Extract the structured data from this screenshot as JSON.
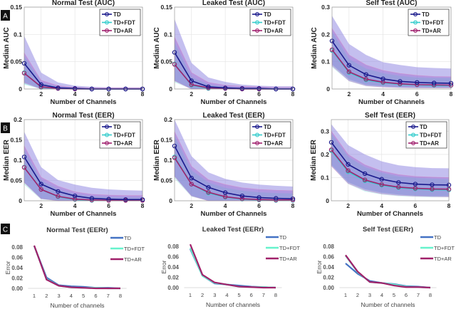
{
  "figure": {
    "panel_labels": [
      "A",
      "B",
      "C"
    ]
  },
  "colors": {
    "TD": "#1a1a8c",
    "TD+FDT": "#33cccc",
    "TD+AR": "#a0206e",
    "TD_band": "#8a80e0",
    "TD+AR_band": "#9050c8",
    "TD+FDT_band": "#66dddd",
    "C_TD": "#4472c4",
    "C_TD+FDT": "#66f2cc",
    "C_TD+AR": "#a0206a"
  },
  "chart_data": [
    {
      "type": "line",
      "row": "A",
      "title": "Normal Test (AUC)",
      "xlabel": "Number of Channels",
      "ylabel": "Median AUC",
      "x": [
        1,
        2,
        3,
        4,
        5,
        6,
        7,
        8
      ],
      "xlim": [
        1,
        8
      ],
      "xticks": [
        "2",
        "4",
        "6",
        "8"
      ],
      "ylim": [
        0,
        0.15
      ],
      "yticks": [
        "0",
        "0.05",
        "0.1",
        "0.15"
      ],
      "grid": true,
      "legend": "top-right",
      "markers": true,
      "series": [
        {
          "name": "TD",
          "values": [
            0.047,
            0.008,
            0.002,
            0.001,
            0,
            0,
            0,
            0
          ],
          "band_upper": [
            0.097,
            0.03,
            0.012,
            0.006,
            0.004,
            0.003,
            0.003,
            0.003
          ],
          "band_lower": [
            0.01,
            0,
            0,
            0,
            0,
            0,
            0,
            0
          ]
        },
        {
          "name": "TD+FDT",
          "values": [
            0.03,
            0.003,
            0.001,
            0,
            0,
            0,
            0,
            0
          ],
          "band_upper": [
            0.06,
            0.012,
            0.004,
            0.002,
            0.001,
            0.001,
            0.001,
            0.001
          ],
          "band_lower": [
            0.008,
            0,
            0,
            0,
            0,
            0,
            0,
            0
          ]
        },
        {
          "name": "TD+AR",
          "values": [
            0.029,
            0.004,
            0.001,
            0,
            0,
            0,
            0,
            0
          ],
          "band_upper": [
            0.066,
            0.016,
            0.006,
            0.003,
            0.002,
            0.002,
            0.002,
            0.002
          ],
          "band_lower": [
            0.012,
            0,
            0,
            0,
            0,
            0,
            0,
            0
          ]
        }
      ]
    },
    {
      "type": "line",
      "row": "A",
      "title": "Leaked Test (AUC)",
      "xlabel": "Number of Channels",
      "ylabel": "Median AUC",
      "x": [
        1,
        2,
        3,
        4,
        5,
        6,
        7,
        8
      ],
      "xlim": [
        1,
        8
      ],
      "xticks": [
        "2",
        "4",
        "6",
        "8"
      ],
      "ylim": [
        0,
        0.15
      ],
      "yticks": [
        "0",
        "0.05",
        "0.1",
        "0.15"
      ],
      "grid": true,
      "legend": "top-right",
      "markers": true,
      "series": [
        {
          "name": "TD",
          "values": [
            0.067,
            0.015,
            0.004,
            0.002,
            0.001,
            0.001,
            0,
            0
          ],
          "band_upper": [
            0.128,
            0.048,
            0.021,
            0.013,
            0.008,
            0.006,
            0.005,
            0.005
          ],
          "band_lower": [
            0.015,
            0,
            0,
            0,
            0,
            0,
            0,
            0
          ]
        },
        {
          "name": "TD+FDT",
          "values": [
            0.046,
            0.007,
            0.001,
            0.001,
            0,
            0,
            0,
            0
          ],
          "band_upper": [
            0.085,
            0.022,
            0.008,
            0.004,
            0.002,
            0.002,
            0.002,
            0.002
          ],
          "band_lower": [
            0.012,
            0,
            0,
            0,
            0,
            0,
            0,
            0
          ]
        },
        {
          "name": "TD+AR",
          "values": [
            0.045,
            0.008,
            0.002,
            0.001,
            0,
            0,
            0,
            0
          ],
          "band_upper": [
            0.095,
            0.03,
            0.012,
            0.007,
            0.005,
            0.004,
            0.003,
            0.003
          ],
          "band_lower": [
            0.015,
            0,
            0,
            0,
            0,
            0,
            0,
            0
          ]
        }
      ]
    },
    {
      "type": "line",
      "row": "A",
      "title": "Self Test (AUC)",
      "xlabel": "Number of Channels",
      "ylabel": "Median AUC",
      "x": [
        1,
        2,
        3,
        4,
        5,
        6,
        7,
        8
      ],
      "xlim": [
        1,
        8
      ],
      "xticks": [
        "2",
        "4",
        "6",
        "8"
      ],
      "ylim": [
        0,
        0.3
      ],
      "yticks": [
        "0",
        "0.1",
        "0.2",
        "0.3"
      ],
      "grid": true,
      "legend": "top-right",
      "markers": true,
      "series": [
        {
          "name": "TD",
          "values": [
            0.176,
            0.087,
            0.053,
            0.037,
            0.028,
            0.024,
            0.022,
            0.021
          ],
          "band_upper": [
            0.268,
            0.165,
            0.125,
            0.098,
            0.088,
            0.08,
            0.077,
            0.075
          ],
          "band_lower": [
            0.09,
            0.035,
            0.015,
            0.01,
            0.007,
            0.006,
            0.005,
            0.005
          ]
        },
        {
          "name": "TD+FDT",
          "values": [
            0.141,
            0.06,
            0.033,
            0.023,
            0.017,
            0.015,
            0.013,
            0.013
          ],
          "band_upper": [
            0.21,
            0.11,
            0.075,
            0.058,
            0.048,
            0.042,
            0.04,
            0.04
          ],
          "band_lower": [
            0.08,
            0.028,
            0.01,
            0.006,
            0.004,
            0.003,
            0.003,
            0.003
          ]
        },
        {
          "name": "TD+AR",
          "values": [
            0.144,
            0.063,
            0.036,
            0.025,
            0.019,
            0.016,
            0.015,
            0.014
          ],
          "band_upper": [
            0.222,
            0.125,
            0.088,
            0.068,
            0.057,
            0.05,
            0.046,
            0.045
          ],
          "band_lower": [
            0.085,
            0.03,
            0.012,
            0.007,
            0.005,
            0.004,
            0.004,
            0.004
          ]
        }
      ]
    },
    {
      "type": "line",
      "row": "B",
      "title": "Normal Test (EER)",
      "xlabel": "Number of Channels",
      "ylabel": "Median EER",
      "x": [
        1,
        2,
        3,
        4,
        5,
        6,
        7,
        8
      ],
      "xlim": [
        1,
        8
      ],
      "xticks": [
        "2",
        "4",
        "6",
        "8"
      ],
      "ylim": [
        0,
        0.2
      ],
      "yticks": [
        "0",
        "0.05",
        "0.1",
        "0.15",
        "0.2"
      ],
      "grid": true,
      "legend": "top-right",
      "markers": true,
      "series": [
        {
          "name": "TD",
          "values": [
            0.108,
            0.041,
            0.023,
            0.012,
            0.006,
            0.004,
            0.003,
            0.003
          ],
          "band_upper": [
            0.17,
            0.083,
            0.051,
            0.04,
            0.032,
            0.028,
            0.026,
            0.025
          ],
          "band_lower": [
            0.045,
            0.005,
            0,
            0,
            0,
            0,
            0,
            0
          ]
        },
        {
          "name": "TD+FDT",
          "values": [
            0.083,
            0.028,
            0.01,
            0.003,
            0.001,
            0.001,
            0.001,
            0.001
          ],
          "band_upper": [
            0.125,
            0.05,
            0.028,
            0.016,
            0.011,
            0.009,
            0.008,
            0.008
          ],
          "band_lower": [
            0.04,
            0.003,
            0,
            0,
            0,
            0,
            0,
            0
          ]
        },
        {
          "name": "TD+AR",
          "values": [
            0.082,
            0.028,
            0.011,
            0.004,
            0.002,
            0.001,
            0.001,
            0.001
          ],
          "band_upper": [
            0.135,
            0.058,
            0.036,
            0.022,
            0.016,
            0.014,
            0.013,
            0.013
          ],
          "band_lower": [
            0.045,
            0.005,
            0,
            0,
            0,
            0,
            0,
            0
          ]
        }
      ]
    },
    {
      "type": "line",
      "row": "B",
      "title": "Leaked Test (EER)",
      "xlabel": "Number of Channels",
      "ylabel": "Median EER",
      "x": [
        1,
        2,
        3,
        4,
        5,
        6,
        7,
        8
      ],
      "xlim": [
        1,
        8
      ],
      "xticks": [
        "2",
        "4",
        "6",
        "8"
      ],
      "ylim": [
        0,
        0.2
      ],
      "yticks": [
        "0",
        "0.05",
        "0.1",
        "0.15",
        "0.2"
      ],
      "grid": true,
      "legend": "top-right",
      "markers": true,
      "series": [
        {
          "name": "TD",
          "values": [
            0.135,
            0.056,
            0.033,
            0.02,
            0.012,
            0.008,
            0.006,
            0.005
          ],
          "band_upper": [
            0.2,
            0.11,
            0.07,
            0.054,
            0.045,
            0.04,
            0.037,
            0.035
          ],
          "band_lower": [
            0.06,
            0.012,
            0,
            0,
            0,
            0,
            0,
            0
          ]
        },
        {
          "name": "TD+FDT",
          "values": [
            0.108,
            0.041,
            0.019,
            0.009,
            0.004,
            0.002,
            0.001,
            0.001
          ],
          "band_upper": [
            0.16,
            0.075,
            0.045,
            0.032,
            0.025,
            0.021,
            0.019,
            0.018
          ],
          "band_lower": [
            0.055,
            0.01,
            0,
            0,
            0,
            0,
            0,
            0
          ]
        },
        {
          "name": "TD+AR",
          "values": [
            0.106,
            0.041,
            0.021,
            0.01,
            0.005,
            0.003,
            0.002,
            0.002
          ],
          "band_upper": [
            0.17,
            0.085,
            0.052,
            0.04,
            0.032,
            0.028,
            0.026,
            0.025
          ],
          "band_lower": [
            0.06,
            0.012,
            0,
            0,
            0,
            0,
            0,
            0
          ]
        }
      ]
    },
    {
      "type": "line",
      "row": "B",
      "title": "Self Test (EER)",
      "xlabel": "Number of Channels",
      "ylabel": "Median EER",
      "x": [
        1,
        2,
        3,
        4,
        5,
        6,
        7,
        8
      ],
      "xlim": [
        1,
        8
      ],
      "xticks": [
        "2",
        "4",
        "6",
        "8"
      ],
      "ylim": [
        0,
        0.35
      ],
      "yticks": [
        "0",
        "0.1",
        "0.2",
        "0.3"
      ],
      "grid": true,
      "legend": "top-right",
      "markers": true,
      "series": [
        {
          "name": "TD",
          "values": [
            0.252,
            0.157,
            0.117,
            0.093,
            0.079,
            0.072,
            0.069,
            0.068
          ],
          "band_upper": [
            0.33,
            0.24,
            0.2,
            0.17,
            0.153,
            0.145,
            0.141,
            0.14
          ],
          "band_lower": [
            0.155,
            0.08,
            0.05,
            0.035,
            0.027,
            0.022,
            0.02,
            0.02
          ]
        },
        {
          "name": "TD+FDT",
          "values": [
            0.216,
            0.125,
            0.086,
            0.067,
            0.056,
            0.051,
            0.048,
            0.047
          ],
          "band_upper": [
            0.29,
            0.19,
            0.145,
            0.12,
            0.105,
            0.098,
            0.095,
            0.093
          ],
          "band_lower": [
            0.15,
            0.072,
            0.04,
            0.027,
            0.02,
            0.017,
            0.015,
            0.015
          ]
        },
        {
          "name": "TD+AR",
          "values": [
            0.22,
            0.13,
            0.09,
            0.07,
            0.059,
            0.054,
            0.051,
            0.05
          ],
          "band_upper": [
            0.3,
            0.2,
            0.155,
            0.128,
            0.113,
            0.105,
            0.102,
            0.1
          ],
          "band_lower": [
            0.15,
            0.075,
            0.045,
            0.03,
            0.023,
            0.02,
            0.018,
            0.017
          ]
        }
      ]
    },
    {
      "type": "line",
      "row": "C",
      "title": "Normal Test (EERr)",
      "xlabel": "Number of channels",
      "ylabel": "Error",
      "categories": [
        "1",
        "2",
        "3",
        "4",
        "5",
        "6",
        "7",
        "8"
      ],
      "ylim": [
        0,
        0.08
      ],
      "yticks": [
        "0.00",
        "0.02",
        "0.04",
        "0.06",
        "0.08"
      ],
      "grid": false,
      "legend": "right",
      "markers": false,
      "series": [
        {
          "name": "TD",
          "values": [
            0.082,
            0.021,
            0.006,
            0.004,
            0.003,
            0.001,
            0.001,
            0
          ]
        },
        {
          "name": "TD+FDT",
          "values": [
            0.082,
            0.018,
            0.005,
            0.002,
            0.001,
            0.001,
            0,
            0
          ]
        },
        {
          "name": "TD+AR",
          "values": [
            0.083,
            0.017,
            0.005,
            0.002,
            0.001,
            0,
            0,
            0
          ]
        }
      ]
    },
    {
      "type": "line",
      "row": "C",
      "title": "Leaked Test (EERr)",
      "xlabel": "Number of channels",
      "ylabel": "Error",
      "categories": [
        "1",
        "2",
        "3",
        "4",
        "5",
        "6",
        "7",
        "8"
      ],
      "ylim": [
        0,
        0.08
      ],
      "yticks": [
        "0.00",
        "0.02",
        "0.04",
        "0.06",
        "0.08"
      ],
      "grid": false,
      "legend": "right",
      "markers": false,
      "series": [
        {
          "name": "TD",
          "values": [
            0.075,
            0.023,
            0.008,
            0.006,
            0.004,
            0.002,
            0.001,
            0
          ]
        },
        {
          "name": "TD+FDT",
          "values": [
            0.077,
            0.023,
            0.009,
            0.006,
            0.002,
            0.001,
            0.001,
            0
          ]
        },
        {
          "name": "TD+AR",
          "values": [
            0.084,
            0.025,
            0.01,
            0.006,
            0.002,
            0.001,
            0,
            0
          ]
        }
      ]
    },
    {
      "type": "line",
      "row": "C",
      "title": "Self Test (EERr)",
      "xlabel": "Number of channels",
      "ylabel": "Error",
      "categories": [
        "1",
        "2",
        "3",
        "4",
        "5",
        "6",
        "7",
        "8"
      ],
      "ylim": [
        0,
        0.08
      ],
      "yticks": [
        "0.00",
        "0.02",
        "0.04",
        "0.06",
        "0.08"
      ],
      "grid": false,
      "legend": "right",
      "markers": false,
      "series": [
        {
          "name": "TD",
          "values": [
            0.047,
            0.027,
            0.013,
            0.009,
            0.007,
            0.003,
            0.002,
            0
          ]
        },
        {
          "name": "TD+FDT",
          "values": [
            0.062,
            0.03,
            0.011,
            0.009,
            0.006,
            0.002,
            0.001,
            0
          ]
        },
        {
          "name": "TD+AR",
          "values": [
            0.063,
            0.031,
            0.011,
            0.009,
            0.004,
            0.001,
            0.001,
            0
          ]
        }
      ]
    }
  ]
}
